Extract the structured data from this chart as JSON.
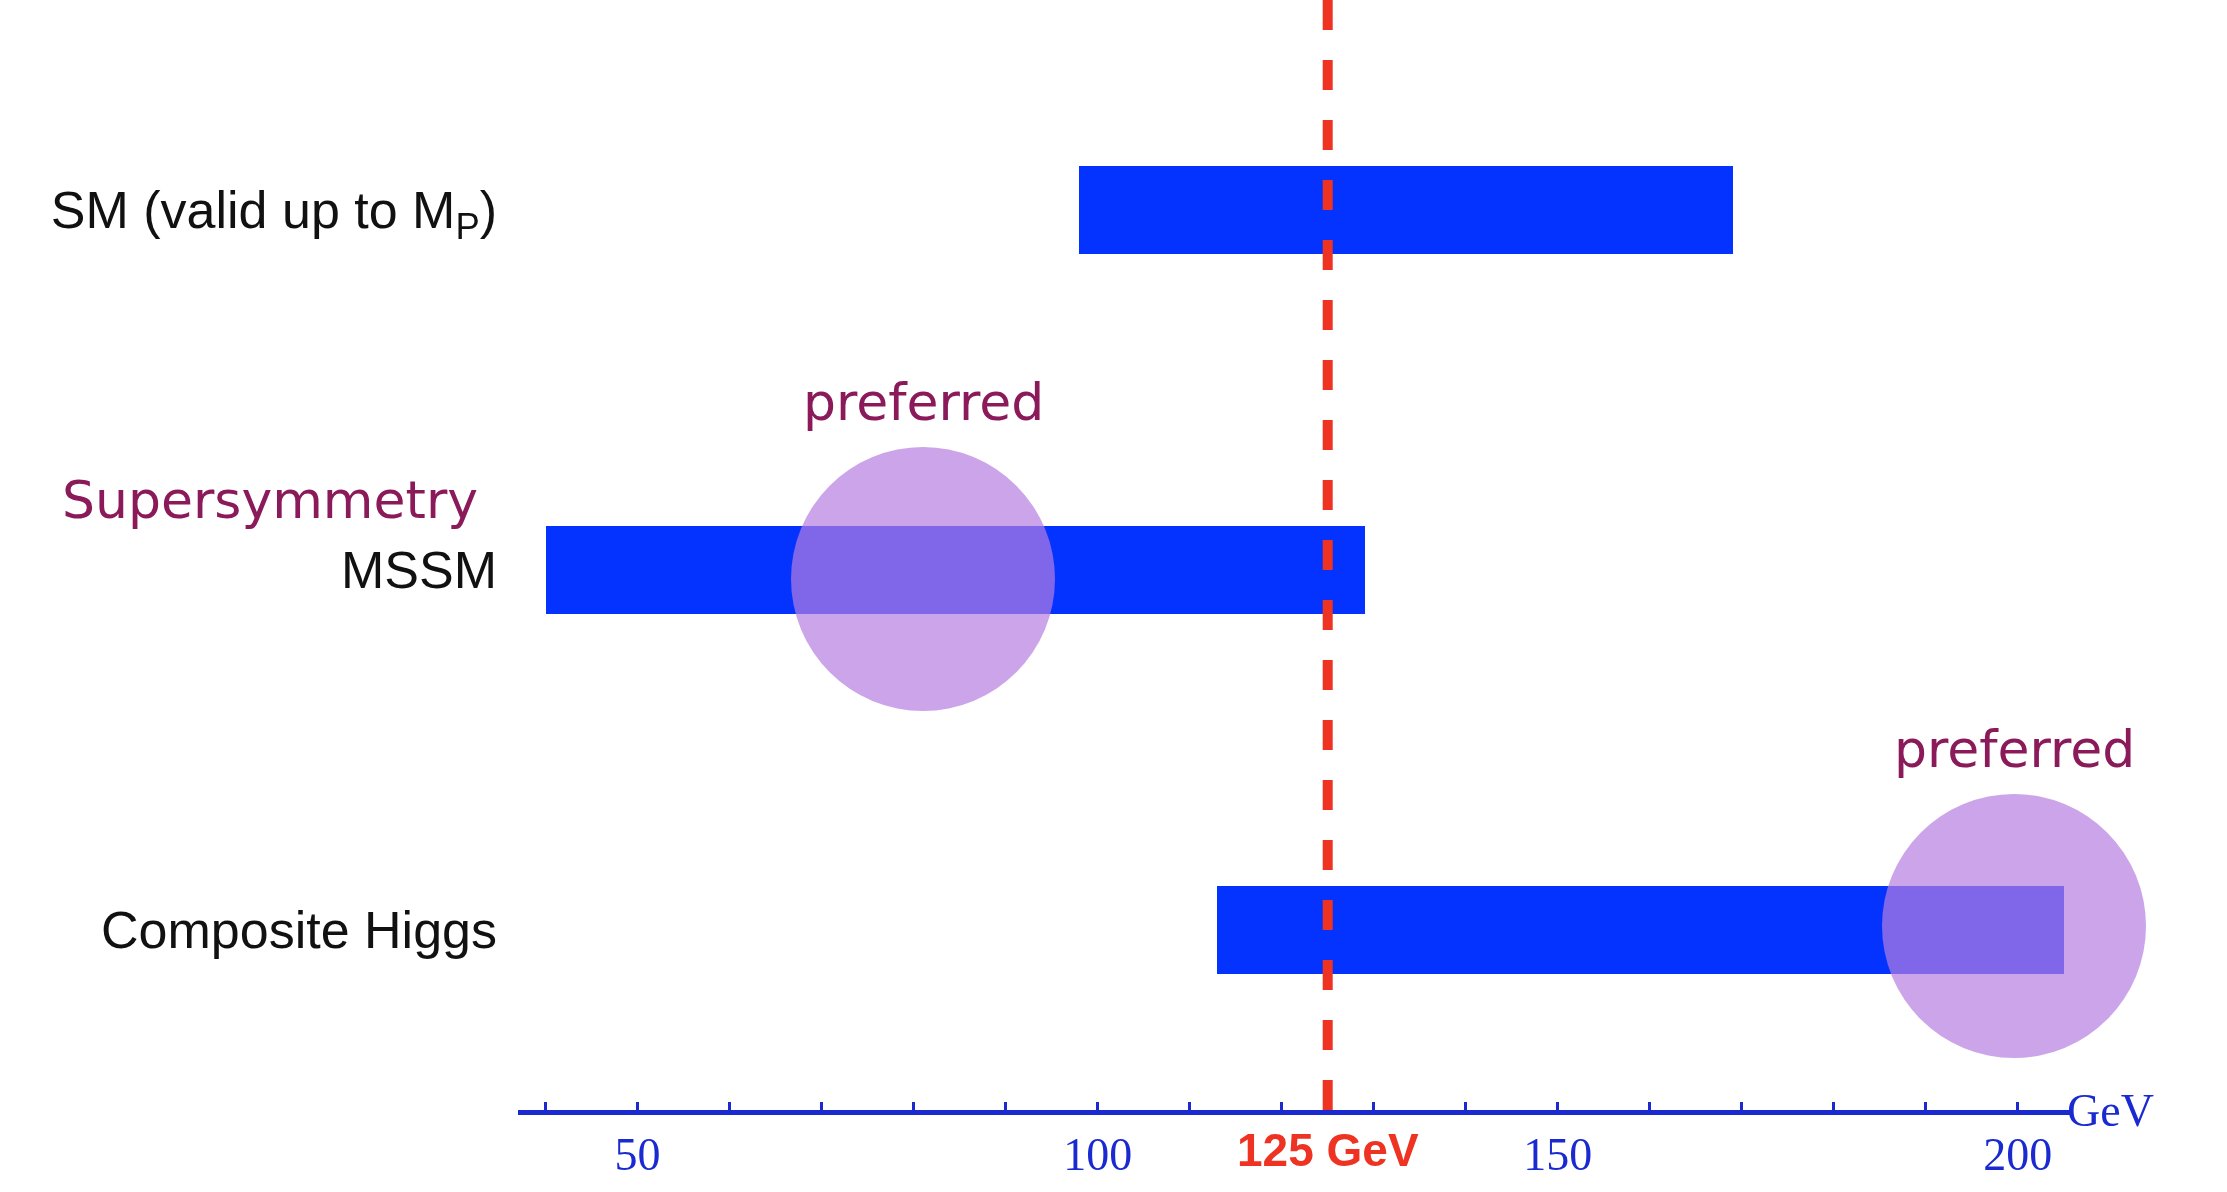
{
  "chart_data": {
    "type": "bar",
    "orientation": "horizontal",
    "categories": [
      "SM (valid up to M$_{P}$)",
      "MSSM",
      "Composite Higgs"
    ],
    "base": [
      98,
      40,
      113
    ],
    "values": [
      71,
      89,
      92
    ],
    "color": "#0433ff",
    "xlim": [
      37,
      206
    ],
    "xticks": [
      {
        "value": 40,
        "label": null
      },
      50,
      {
        "value": 60,
        "label": null
      },
      {
        "value": 70,
        "label": null
      },
      {
        "value": 80,
        "label": null
      },
      {
        "value": 90,
        "label": null
      },
      100,
      {
        "value": 110,
        "label": null
      },
      {
        "value": 120,
        "label": null
      },
      {
        "value": 130,
        "label": null
      },
      {
        "value": 140,
        "label": null
      },
      150,
      {
        "value": 160,
        "label": null
      },
      {
        "value": 170,
        "label": null
      },
      {
        "value": 180,
        "label": null
      },
      {
        "value": 190,
        "label": null
      },
      200
    ],
    "xlabel": "GeV",
    "ref_lines": [
      {
        "axis": "x",
        "value": 125,
        "label": "125 GeV",
        "color": "#ee3322",
        "line_style": "dashed"
      }
    ],
    "annotations": [
      "Supersymmetry",
      "preferred",
      "preferred"
    ]
  }
}
